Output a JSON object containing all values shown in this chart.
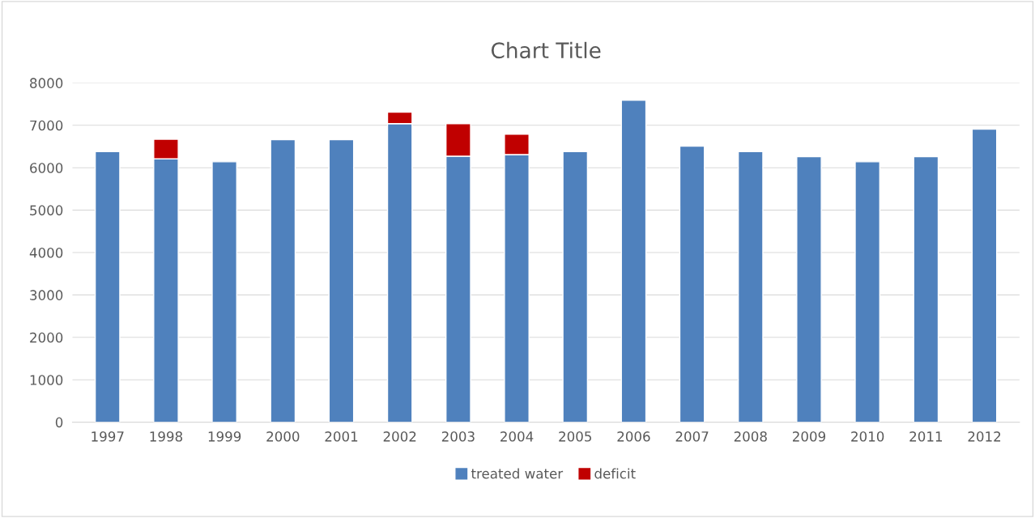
{
  "chart_data": {
    "type": "bar",
    "title": "Chart Title",
    "stacked": true,
    "categories": [
      "1997",
      "1998",
      "1999",
      "2000",
      "2001",
      "2002",
      "2003",
      "2004",
      "2005",
      "2006",
      "2007",
      "2008",
      "2009",
      "2010",
      "2011",
      "2012"
    ],
    "series": [
      {
        "name": "treated water",
        "color": "#4f81bd",
        "values": [
          6380,
          6210,
          6140,
          6660,
          6660,
          7040,
          6270,
          6310,
          6380,
          7590,
          6510,
          6380,
          6260,
          6140,
          6260,
          6910
        ]
      },
      {
        "name": "deficit",
        "color": "#c00000",
        "values": [
          null,
          460,
          null,
          null,
          null,
          270,
          770,
          480,
          null,
          null,
          null,
          null,
          null,
          null,
          null,
          null
        ]
      }
    ],
    "ylim": [
      0,
      8000
    ],
    "yticks": [
      0,
      1000,
      2000,
      3000,
      4000,
      5000,
      6000,
      7000,
      8000
    ],
    "grid": "y",
    "legend": "bottom"
  }
}
